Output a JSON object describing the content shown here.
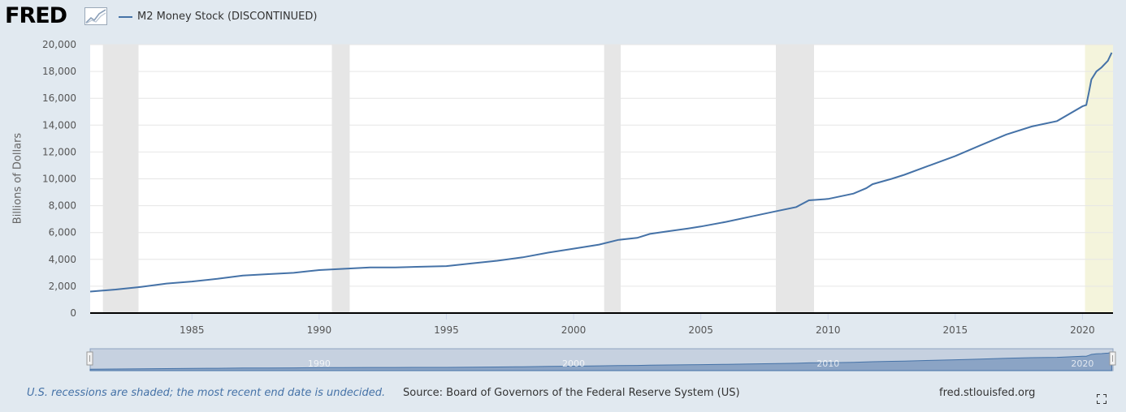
{
  "header": {
    "logo_text": "FRED",
    "logo_icon": "trend-graph-icon",
    "legend_label": "M2 Money Stock (DISCONTINUED)",
    "series_color": "#4572a7"
  },
  "chart_data": {
    "type": "line",
    "ylabel": "Billions of Dollars",
    "ylim": [
      0,
      20000
    ],
    "yticks": [
      "0",
      "2,000",
      "4,000",
      "6,000",
      "8,000",
      "10,000",
      "12,000",
      "14,000",
      "16,000",
      "18,000",
      "20,000"
    ],
    "xlim": [
      1981,
      2021.2
    ],
    "xticks": [
      "1985",
      "1990",
      "1995",
      "2000",
      "2005",
      "2010",
      "2015",
      "2020"
    ],
    "grid": true,
    "recessions": [
      [
        1981.5,
        1982.9
      ],
      [
        1990.5,
        1991.2
      ],
      [
        2001.2,
        2001.85
      ],
      [
        2007.95,
        2009.45
      ],
      [
        2020.1,
        2021.2
      ]
    ],
    "series": [
      {
        "name": "M2 Money Stock (DISCONTINUED)",
        "x": [
          1981.0,
          1982.0,
          1983.0,
          1984.0,
          1985.0,
          1986.0,
          1987.0,
          1988.0,
          1989.0,
          1990.0,
          1991.0,
          1992.0,
          1993.0,
          1994.0,
          1995.0,
          1996.0,
          1997.0,
          1998.0,
          1999.0,
          2000.0,
          2001.0,
          2001.75,
          2002.5,
          2003.0,
          2003.75,
          2004.5,
          2005.0,
          2006.0,
          2007.0,
          2008.0,
          2008.75,
          2009.25,
          2010.0,
          2011.0,
          2011.5,
          2011.75,
          2012.5,
          2013.0,
          2014.0,
          2015.0,
          2016.0,
          2017.0,
          2018.0,
          2019.0,
          2020.0,
          2020.15,
          2020.25,
          2020.35,
          2020.55,
          2020.75,
          2021.0,
          2021.15
        ],
        "values": [
          1600,
          1750,
          1950,
          2200,
          2350,
          2550,
          2800,
          2900,
          3000,
          3200,
          3300,
          3400,
          3400,
          3450,
          3500,
          3700,
          3900,
          4150,
          4500,
          4800,
          5100,
          5450,
          5600,
          5900,
          6100,
          6300,
          6450,
          6800,
          7200,
          7600,
          7900,
          8400,
          8500,
          8900,
          9300,
          9600,
          10000,
          10300,
          11000,
          11700,
          12500,
          13300,
          13900,
          14300,
          15400,
          15500,
          16400,
          17400,
          18000,
          18300,
          18800,
          19400
        ]
      }
    ]
  },
  "navigator": {
    "labels": [
      "1990",
      "2000",
      "2010",
      "2020"
    ]
  },
  "footer": {
    "recession_note": "U.S. recessions are shaded; the most recent end date is undecided.",
    "source": "Source: Board of Governors of the Federal Reserve System (US)",
    "site": "fred.stlouisfed.org",
    "expand_icon": "fullscreen-icon"
  }
}
